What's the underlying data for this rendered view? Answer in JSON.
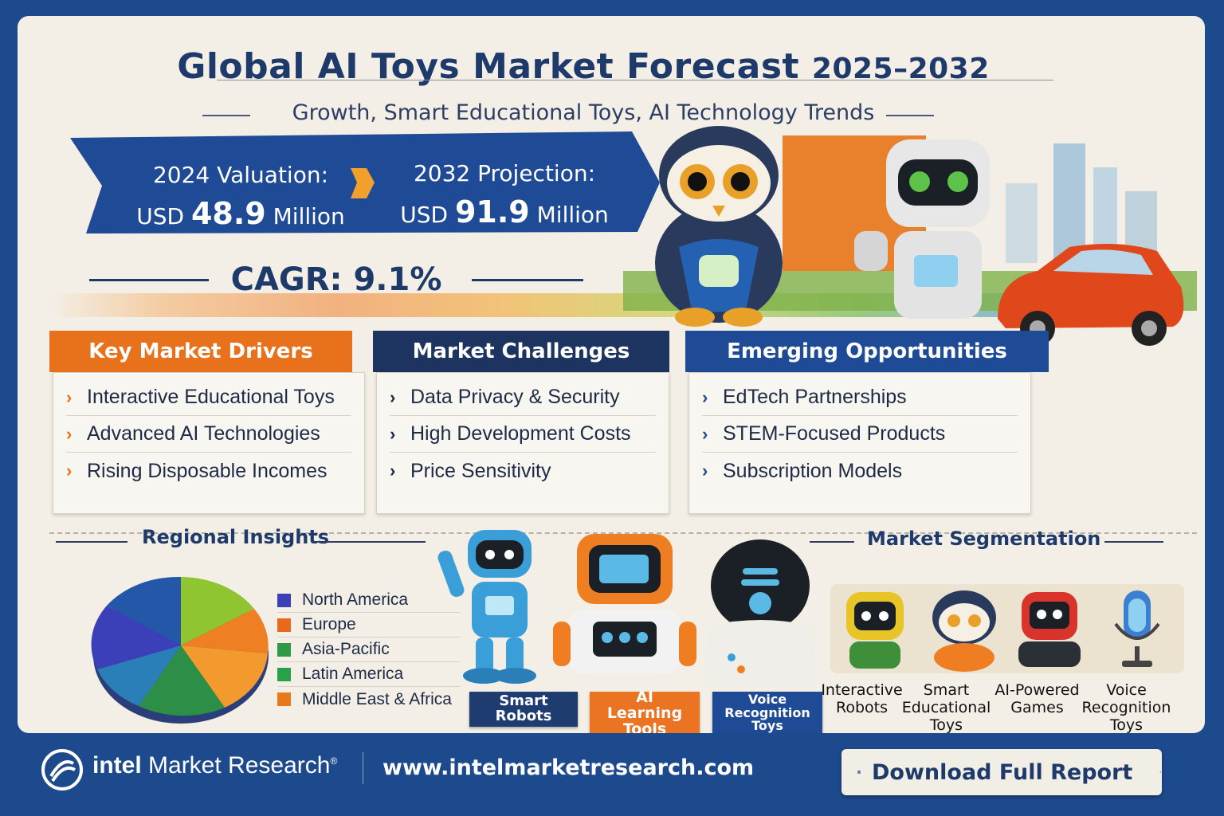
{
  "header": {
    "title": "Global AI Toys Market Forecast",
    "title_years": "2025–2032",
    "subtitle": "Growth, Smart Educational Toys, AI Technology Trends"
  },
  "valuation": {
    "current_label": "2024 Valuation:",
    "current_prefix": "USD",
    "current_value": "48.9",
    "current_unit": "Million",
    "projection_label": "2032 Projection:",
    "projection_prefix": "USD",
    "projection_value": "91.9",
    "projection_unit": "Million",
    "cagr": "CAGR: 9.1%"
  },
  "panels": {
    "drivers": {
      "title": "Key Market Drivers",
      "color": "#e8721c",
      "items": [
        "Interactive Educational Toys",
        "Advanced AI Technologies",
        "Rising Disposable Incomes"
      ]
    },
    "challenges": {
      "title": "Market Challenges",
      "color": "#1e3460",
      "items": [
        "Data Privacy & Security",
        "High Development Costs",
        "Price Sensitivity"
      ]
    },
    "opportunities": {
      "title": "Emerging Opportunities",
      "color": "#1f4a96",
      "items": [
        "EdTech Partnerships",
        "STEM-Focused Products",
        "Subscription Models"
      ]
    }
  },
  "regional": {
    "title": "Regional Insights",
    "legend": [
      {
        "name": "North America",
        "color": "#3b3fb8"
      },
      {
        "name": "Europe",
        "color": "#e8681c"
      },
      {
        "name": "Asia-Pacific",
        "color": "#2f9a45"
      },
      {
        "name": "Latin America",
        "color": "#29a04a"
      },
      {
        "name": "Middle East & Africa",
        "color": "#e8781c"
      }
    ]
  },
  "product_tags": {
    "smart_robots": "Smart Robots",
    "ai_learning_tools": "AI Learning Tools",
    "voice_recognition": "Voice Recognition Toys"
  },
  "segmentation": {
    "title": "Market Segmentation",
    "items": [
      "Interactive Robots",
      "Smart Educational Toys",
      "AI-Powered Games",
      "Voice Recognition Toys"
    ]
  },
  "footer": {
    "brand_bold": "intel",
    "brand_rest": "Market Research",
    "brand_mark": "®",
    "url": "www.intelmarketresearch.com",
    "download_label": "Download Full Report"
  }
}
